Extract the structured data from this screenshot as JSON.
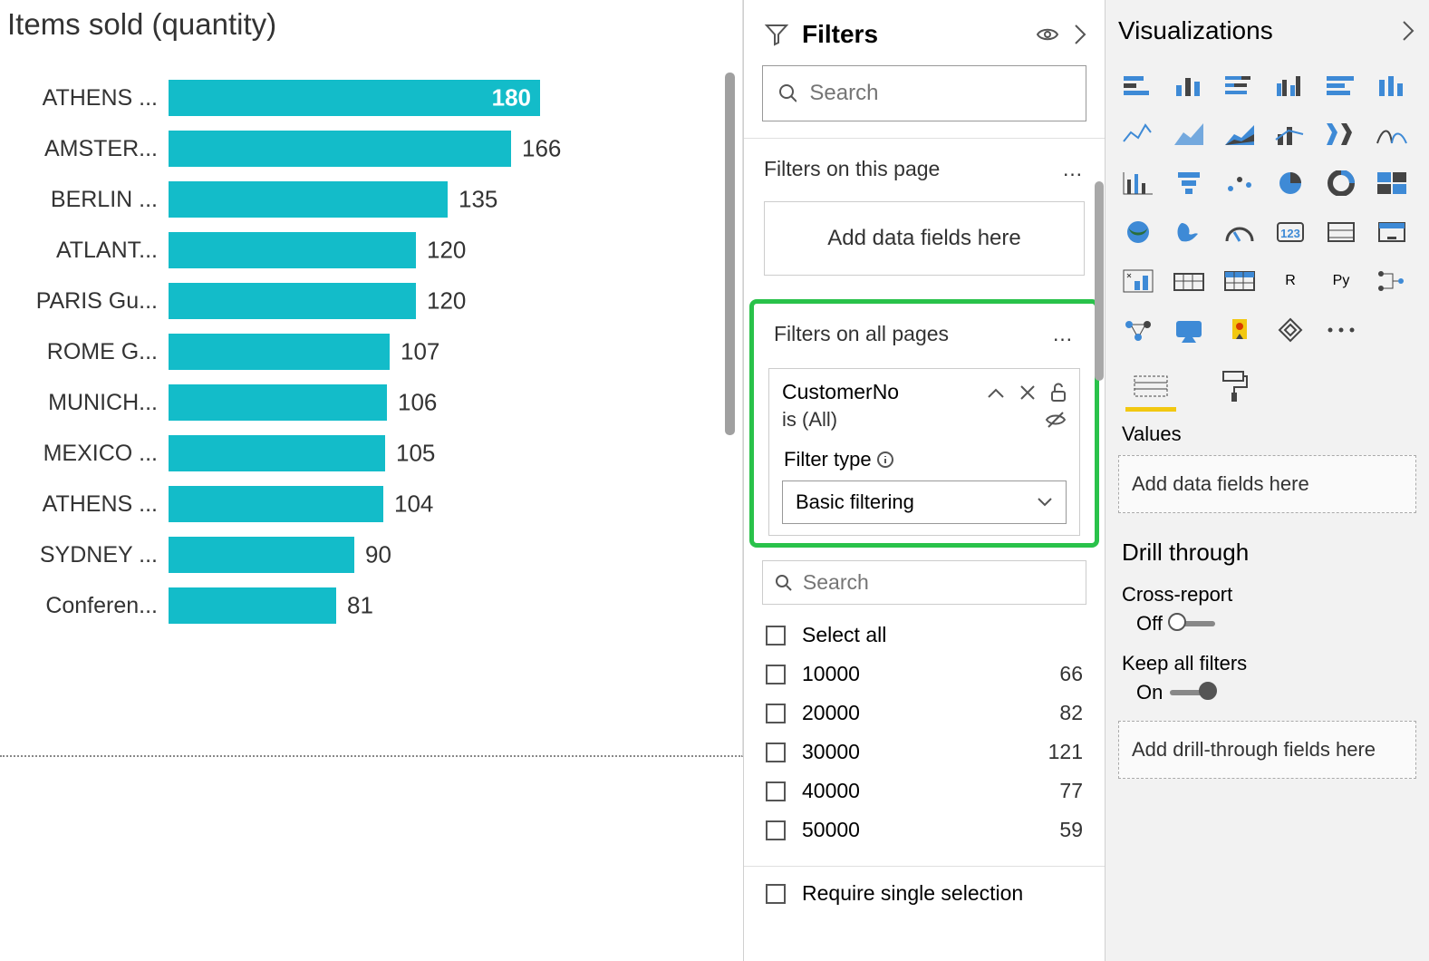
{
  "chart": {
    "title": "Items sold (quantity)",
    "bar_color": "#13bcc9",
    "max_value": 180,
    "label_fontsize": 25,
    "value_fontsize": 26,
    "bars": [
      {
        "label": "ATHENS ...",
        "value": 180,
        "inside": true
      },
      {
        "label": "AMSTER...",
        "value": 166,
        "inside": false
      },
      {
        "label": "BERLIN ...",
        "value": 135,
        "inside": false
      },
      {
        "label": "ATLANT...",
        "value": 120,
        "inside": false
      },
      {
        "label": "PARIS Gu...",
        "value": 120,
        "inside": false
      },
      {
        "label": "ROME G...",
        "value": 107,
        "inside": false
      },
      {
        "label": "MUNICH...",
        "value": 106,
        "inside": false
      },
      {
        "label": "MEXICO ...",
        "value": 105,
        "inside": false
      },
      {
        "label": "ATHENS ...",
        "value": 104,
        "inside": false
      },
      {
        "label": "SYDNEY ...",
        "value": 90,
        "inside": false
      },
      {
        "label": "Conferen...",
        "value": 81,
        "inside": false
      }
    ]
  },
  "filters": {
    "pane_title": "Filters",
    "search_placeholder": "Search",
    "section_page": "Filters on this page",
    "drop_page": "Add data fields here",
    "section_all": "Filters on all pages",
    "card": {
      "field": "CustomerNo",
      "summary": "is (All)",
      "type_label": "Filter type",
      "type_value": "Basic filtering"
    },
    "values_search_placeholder": "Search",
    "select_all": "Select all",
    "values": [
      {
        "label": "10000",
        "count": 66
      },
      {
        "label": "20000",
        "count": 82
      },
      {
        "label": "30000",
        "count": 121
      },
      {
        "label": "40000",
        "count": 77
      },
      {
        "label": "50000",
        "count": 59
      }
    ],
    "require_single": "Require single selection"
  },
  "viz": {
    "pane_title": "Visualizations",
    "values_label": "Values",
    "values_drop": "Add data fields here",
    "drill_title": "Drill through",
    "cross_report": "Cross-report",
    "cross_report_state": "Off",
    "keep_filters": "Keep all filters",
    "keep_filters_state": "On",
    "drill_drop": "Add drill-through fields here",
    "r_label": "R",
    "py_label": "Py",
    "icon_colors": {
      "accent": "#3e8ad6",
      "dark": "#444444"
    }
  }
}
